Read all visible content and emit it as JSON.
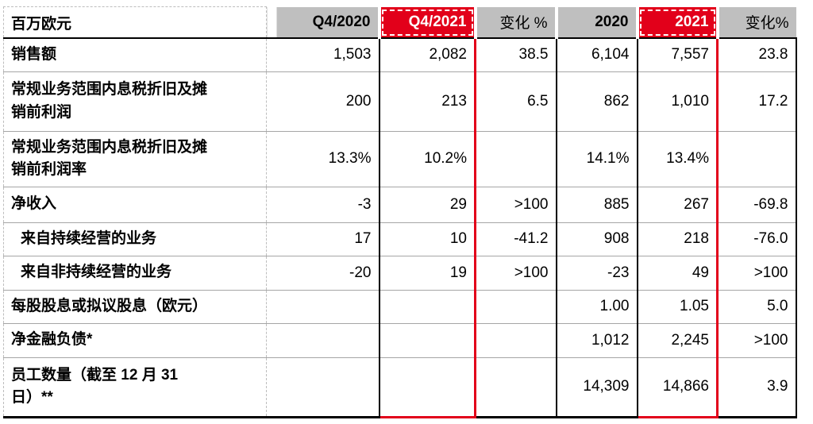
{
  "colors": {
    "accent_red": "#e2001a",
    "header_grey": "#bfbfbf",
    "row_divider_grey": "#a6a6a6"
  },
  "columns": [
    {
      "key": "label",
      "label": "百万欧元",
      "style": "label"
    },
    {
      "key": "q4_2020",
      "label": "Q4/2020",
      "style": "grey"
    },
    {
      "key": "q4_2021",
      "label": "Q4/2021",
      "style": "red"
    },
    {
      "key": "chg_q4",
      "label": "变化 %",
      "style": "chg"
    },
    {
      "key": "fy_2020",
      "label": "2020",
      "style": "grey"
    },
    {
      "key": "fy_2021",
      "label": "2021",
      "style": "red"
    },
    {
      "key": "chg_fy",
      "label": "变化%",
      "style": "chg"
    }
  ],
  "rows": [
    {
      "label": "销售额",
      "indent": false,
      "values": [
        "1,503",
        "2,082",
        "38.5",
        "6,104",
        "7,557",
        "23.8"
      ]
    },
    {
      "label": "常规业务范围内息税折旧及摊\n销前利润",
      "indent": false,
      "values": [
        "200",
        "213",
        "6.5",
        "862",
        "1,010",
        "17.2"
      ]
    },
    {
      "label": "常规业务范围内息税折旧及摊\n销前利润率",
      "indent": false,
      "values": [
        "13.3%",
        "10.2%",
        "",
        "14.1%",
        "13.4%",
        ""
      ]
    },
    {
      "label": "净收入",
      "indent": false,
      "values": [
        "-3",
        "29",
        ">100",
        "885",
        "267",
        "-69.8"
      ]
    },
    {
      "label": "来自持续经营的业务",
      "indent": true,
      "values": [
        "17",
        "10",
        "-41.2",
        "908",
        "218",
        "-76.0"
      ]
    },
    {
      "label": "来自非持续经营的业务",
      "indent": true,
      "values": [
        "-20",
        "19",
        ">100",
        "-23",
        "49",
        ">100"
      ]
    },
    {
      "label": "每股股息或拟议股息（欧元）",
      "indent": false,
      "values": [
        "",
        "",
        "",
        "1.00",
        "1.05",
        "5.0"
      ]
    },
    {
      "label": "净金融负债*",
      "indent": false,
      "values": [
        "",
        "",
        "",
        "1,012",
        "2,245",
        ">100"
      ]
    },
    {
      "label": "员工数量（截至 12 月 31\n日）**",
      "indent": false,
      "values": [
        "",
        "",
        "",
        "14,309",
        "14,866",
        "3.9"
      ]
    }
  ]
}
